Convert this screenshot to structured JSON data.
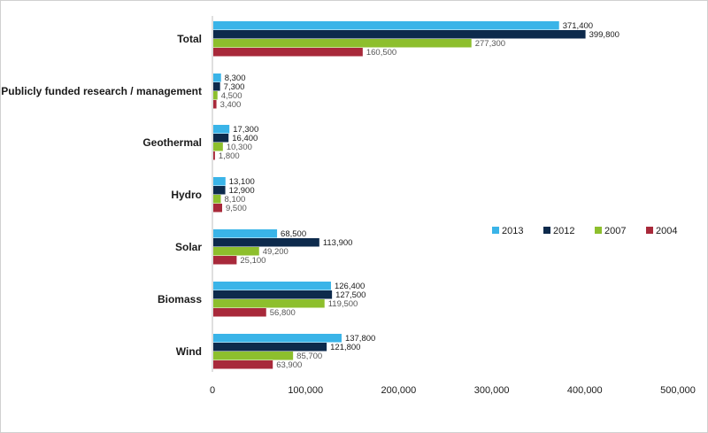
{
  "chart_data": {
    "type": "bar",
    "orientation": "horizontal",
    "categories": [
      "Total",
      "Publicly funded research / management",
      "Geothermal",
      "Hydro",
      "Solar",
      "Biomass",
      "Wind"
    ],
    "series": [
      {
        "name": "2013",
        "color": "#3ab4e8",
        "values": [
          371400,
          8300,
          17300,
          13100,
          68500,
          126400,
          137800
        ],
        "labels": [
          "371,400",
          "8,300",
          "17,300",
          "13,100",
          "68,500",
          "126,400",
          "137,800"
        ]
      },
      {
        "name": "2012",
        "color": "#0d2a4c",
        "values": [
          399800,
          7300,
          16400,
          12900,
          113900,
          127500,
          121800
        ],
        "labels": [
          "399,800",
          "7,300",
          "16,400",
          "12,900",
          "113,900",
          "127,500",
          "121,800"
        ]
      },
      {
        "name": "2007",
        "color": "#8dbf2d",
        "values": [
          277300,
          4500,
          10300,
          8100,
          49200,
          119500,
          85700
        ],
        "labels": [
          "277,300",
          "4,500",
          "10,300",
          "8,100",
          "49,200",
          "119,500",
          "85,700"
        ]
      },
      {
        "name": "2004",
        "color": "#a8293a",
        "values": [
          160500,
          3400,
          1800,
          9500,
          25100,
          56800,
          63900
        ],
        "labels": [
          "160,500",
          "3,400",
          "1,800",
          "9,500",
          "25,100",
          "56,800",
          "63,900"
        ]
      }
    ],
    "xlim": [
      0,
      500000
    ],
    "x_ticks": [
      0,
      100000,
      200000,
      300000,
      400000,
      500000
    ],
    "x_tick_labels": [
      "0",
      "100,000",
      "200,000",
      "300,000",
      "400,000",
      "500,000"
    ],
    "title": "",
    "xlabel": "",
    "ylabel": "",
    "grid": false,
    "legend": {
      "placement": "right",
      "entries": [
        "2013",
        "2012",
        "2007",
        "2004"
      ]
    }
  }
}
